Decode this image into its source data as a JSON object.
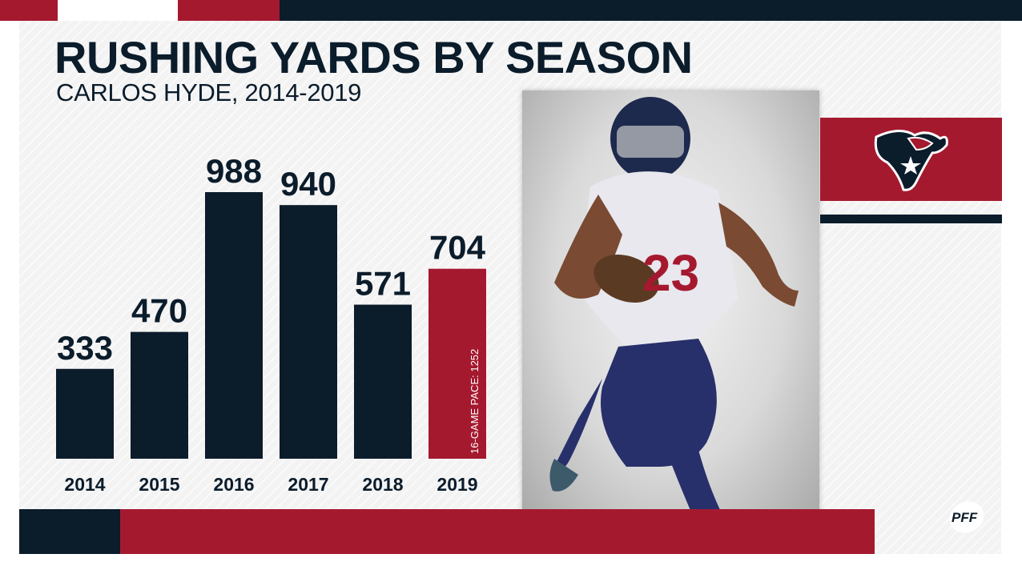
{
  "header": {
    "title": "RUSHING YARDS BY SEASON",
    "subtitle": "CARLOS HYDE, 2014-2019"
  },
  "chart_data": {
    "type": "bar",
    "title": "RUSHING YARDS BY SEASON",
    "subtitle": "CARLOS HYDE, 2014-2019",
    "categories": [
      "2014",
      "2015",
      "2016",
      "2017",
      "2018",
      "2019"
    ],
    "values": [
      333,
      470,
      988,
      940,
      571,
      704
    ],
    "ylim": [
      0,
      988
    ],
    "bar_colors": [
      "#0b1c2b",
      "#0b1c2b",
      "#0b1c2b",
      "#0b1c2b",
      "#0b1c2b",
      "#a5192f"
    ],
    "annotations": [
      {
        "category": "2019",
        "text": "16-GAME PACE: 1252"
      }
    ],
    "grid": false,
    "legend": "none"
  },
  "branding": {
    "team_logo": "houston-texans-bull-icon",
    "publisher_logo": "PFF",
    "photo": "player-photo"
  },
  "colors": {
    "navy": "#0b1c2b",
    "red": "#a5192f",
    "white": "#ffffff",
    "panel": "#f3f3f3"
  }
}
